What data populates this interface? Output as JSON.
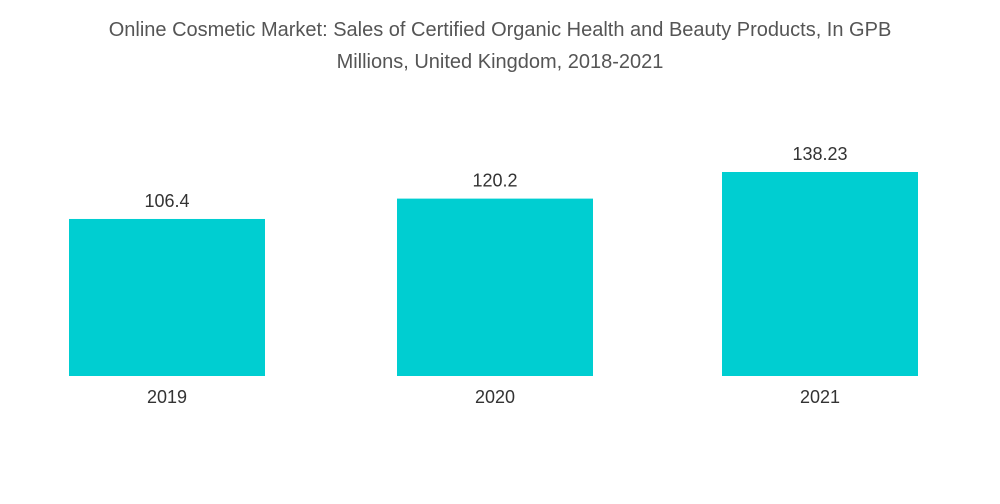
{
  "chart_data": {
    "type": "bar",
    "title_lines": [
      "Online Cosmetic Market: Sales of Certified Organic Health and Beauty Products, In GPB",
      "Millions, United Kingdom, 2018-2021"
    ],
    "categories": [
      "2019",
      "2020",
      "2021"
    ],
    "values": [
      106.4,
      120.2,
      138.23
    ],
    "value_labels": [
      "106.4",
      "120.2",
      "138.23"
    ],
    "bar_color": "#00CED1",
    "xlabel": "",
    "ylabel": "",
    "grid": false,
    "legend": false
  }
}
